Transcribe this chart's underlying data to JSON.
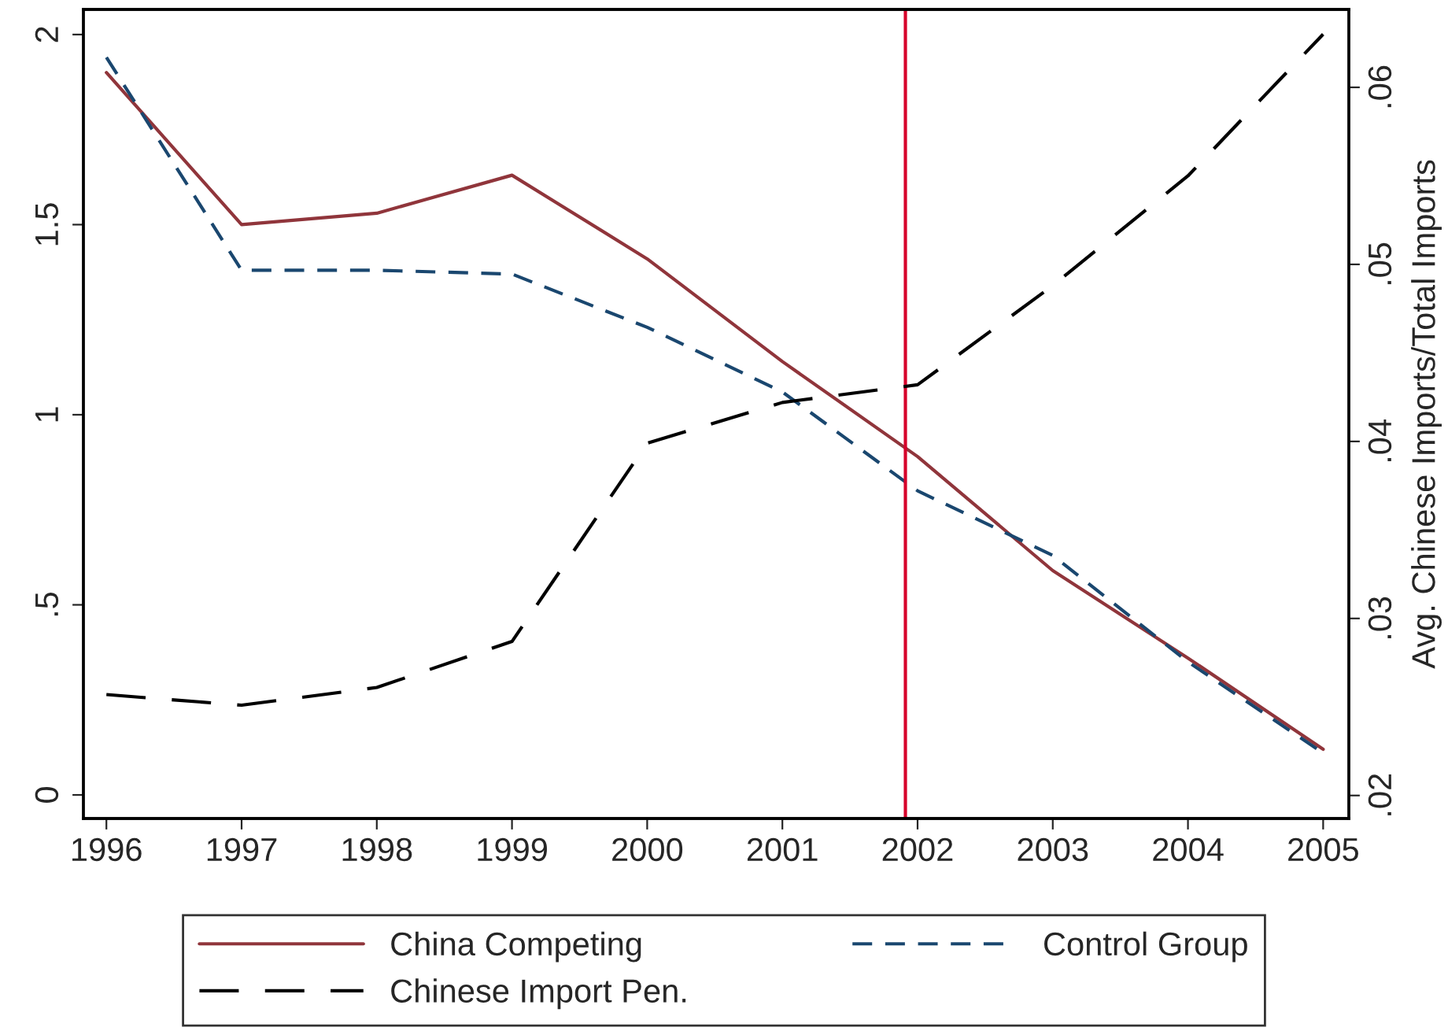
{
  "chart_data": {
    "type": "line",
    "x": [
      1996,
      1997,
      1998,
      1999,
      2000,
      2001,
      2002,
      2003,
      2004,
      2005
    ],
    "series": [
      {
        "name": "China Competing",
        "color": "#90353b",
        "line_style": "solid",
        "values": [
          1.9,
          1.5,
          1.53,
          1.63,
          1.41,
          1.14,
          0.89,
          0.59,
          0.36,
          0.12
        ]
      },
      {
        "name": "Control Group",
        "color": "#1a476f",
        "line_style": "dashed",
        "values": [
          1.94,
          1.38,
          1.38,
          1.37,
          1.23,
          1.06,
          0.8,
          0.63,
          0.35,
          0.11
        ]
      },
      {
        "name": "Chinese Import Pen.",
        "color": "#000000",
        "line_style": "dashed",
        "axis": "y2",
        "values": [
          0.0257,
          0.0251,
          0.0261,
          0.0287,
          0.0399,
          0.0422,
          0.0432,
          0.0488,
          0.055,
          0.063
        ]
      }
    ],
    "y2label": "Avg. Chinese Imports/Total Imports",
    "xlim": [
      1995.83,
      2005.19
    ],
    "xticks": [
      1996,
      1997,
      1998,
      1999,
      2000,
      2001,
      2002,
      2003,
      2004,
      2005
    ],
    "ylim": [
      -0.062,
      2.066
    ],
    "yticks": [
      {
        "value": 0,
        "label": "0"
      },
      {
        "value": 0.5,
        "label": ".5"
      },
      {
        "value": 1,
        "label": "1"
      },
      {
        "value": 1.5,
        "label": "1.5"
      },
      {
        "value": 2,
        "label": "2"
      }
    ],
    "y2lim": [
      0.0187,
      0.0644
    ],
    "y2ticks": [
      {
        "value": 0.02,
        "label": ".02"
      },
      {
        "value": 0.03,
        "label": ".03"
      },
      {
        "value": 0.04,
        "label": ".04"
      },
      {
        "value": 0.05,
        "label": ".05"
      },
      {
        "value": 0.06,
        "label": ".06"
      }
    ],
    "ref_lines": [
      {
        "axis": "x",
        "value": 2001.91,
        "color": "#d6002a"
      }
    ],
    "grid": false,
    "legend": "bottom",
    "marker": "none"
  }
}
